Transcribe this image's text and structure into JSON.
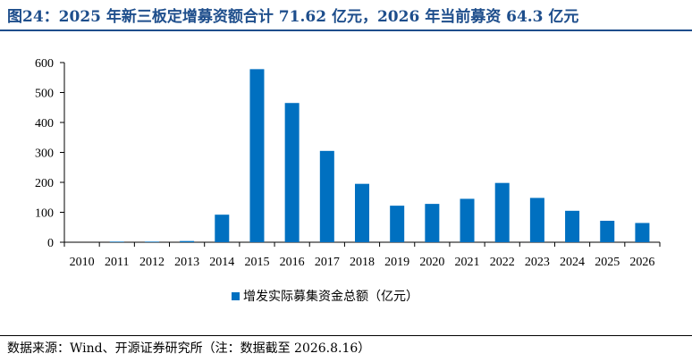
{
  "title": "图24：2025 年新三板定增募资额合计 71.62 亿元，2026 年当前募资 64.3 亿元",
  "source": "数据来源：Wind、开源证券研究所（注：数据截至 2026.8.16）",
  "colors": {
    "bar": "#0070c0",
    "title": "#1e4e8c"
  },
  "chart_data": {
    "type": "bar",
    "categories": [
      "2010",
      "2011",
      "2012",
      "2013",
      "2014",
      "2015",
      "2016",
      "2017",
      "2018",
      "2019",
      "2020",
      "2021",
      "2022",
      "2023",
      "2024",
      "2025",
      "2026"
    ],
    "series": [
      {
        "name": "增发实际募集资金总额（亿元）",
        "values": [
          0,
          2,
          2,
          4,
          92,
          578,
          465,
          305,
          195,
          122,
          128,
          145,
          198,
          148,
          105,
          71.62,
          64.3
        ]
      }
    ],
    "title": "",
    "xlabel": "",
    "ylabel": "",
    "ylim": [
      0,
      600
    ],
    "yticks": [
      0,
      100,
      200,
      300,
      400,
      500,
      600
    ],
    "grid": false,
    "legend_position": "bottom"
  }
}
